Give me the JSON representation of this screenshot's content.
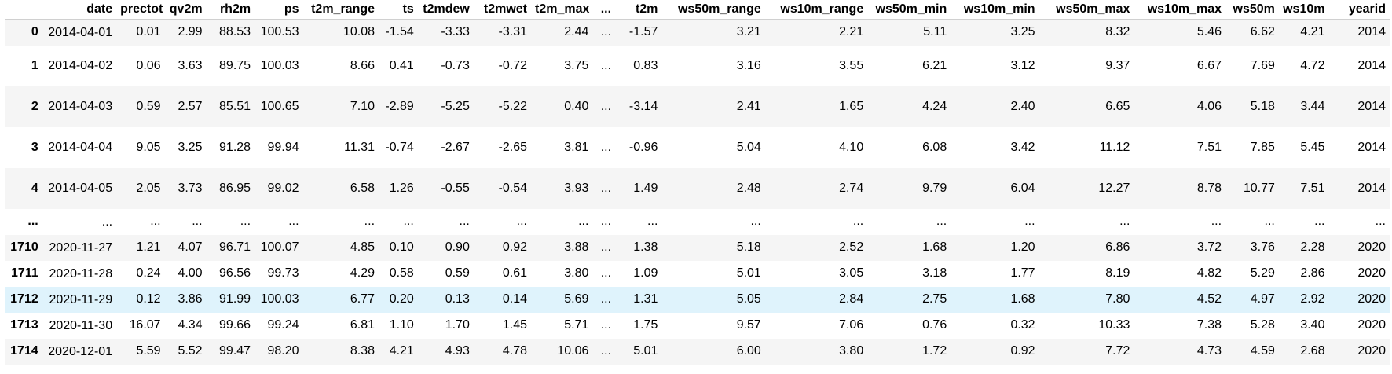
{
  "table": {
    "columns": [
      "",
      "date",
      "prectot",
      "qv2m",
      "rh2m",
      "ps",
      "t2m_range",
      "ts",
      "t2mdew",
      "t2mwet",
      "t2m_max",
      "...",
      "t2m",
      "ws50m_range",
      "ws10m_range",
      "ws50m_min",
      "ws10m_min",
      "ws50m_max",
      "ws10m_max",
      "ws50m",
      "ws10m",
      "yearid"
    ],
    "rows": [
      {
        "index": "0",
        "date": "2014-04-01",
        "values": [
          "0.01",
          "2.99",
          "88.53",
          "100.53",
          "10.08",
          "-1.54",
          "-3.33",
          "-3.31",
          "2.44",
          "...",
          "-1.57",
          "3.21",
          "2.21",
          "5.11",
          "3.25",
          "8.32",
          "5.46",
          "6.62",
          "4.21",
          "2014"
        ]
      },
      {
        "index": "1",
        "date": "2014-04-02",
        "values": [
          "0.06",
          "3.63",
          "89.75",
          "100.03",
          "8.66",
          "0.41",
          "-0.73",
          "-0.72",
          "3.75",
          "...",
          "0.83",
          "3.16",
          "3.55",
          "6.21",
          "3.12",
          "9.37",
          "6.67",
          "7.69",
          "4.72",
          "2014"
        ]
      },
      {
        "index": "2",
        "date": "2014-04-03",
        "values": [
          "0.59",
          "2.57",
          "85.51",
          "100.65",
          "7.10",
          "-2.89",
          "-5.25",
          "-5.22",
          "0.40",
          "...",
          "-3.14",
          "2.41",
          "1.65",
          "4.24",
          "2.40",
          "6.65",
          "4.06",
          "5.18",
          "3.44",
          "2014"
        ]
      },
      {
        "index": "3",
        "date": "2014-04-04",
        "values": [
          "9.05",
          "3.25",
          "91.28",
          "99.94",
          "11.31",
          "-0.74",
          "-2.67",
          "-2.65",
          "3.81",
          "...",
          "-0.96",
          "5.04",
          "4.10",
          "6.08",
          "3.42",
          "11.12",
          "7.51",
          "7.85",
          "5.45",
          "2014"
        ]
      },
      {
        "index": "4",
        "date": "2014-04-05",
        "values": [
          "2.05",
          "3.73",
          "86.95",
          "99.02",
          "6.58",
          "1.26",
          "-0.55",
          "-0.54",
          "3.93",
          "...",
          "1.49",
          "2.48",
          "2.74",
          "9.79",
          "6.04",
          "12.27",
          "8.78",
          "10.77",
          "7.51",
          "2014"
        ]
      },
      {
        "index": "...",
        "date": "...",
        "values": [
          "...",
          "...",
          "...",
          "...",
          "...",
          "...",
          "...",
          "...",
          "...",
          "...",
          "...",
          "...",
          "...",
          "...",
          "...",
          "...",
          "...",
          "...",
          "...",
          "..."
        ]
      },
      {
        "index": "1710",
        "date": "2020-11-27",
        "values": [
          "1.21",
          "4.07",
          "96.71",
          "100.07",
          "4.85",
          "0.10",
          "0.90",
          "0.92",
          "3.88",
          "...",
          "1.38",
          "5.18",
          "2.52",
          "1.68",
          "1.20",
          "6.86",
          "3.72",
          "3.76",
          "2.28",
          "2020"
        ]
      },
      {
        "index": "1711",
        "date": "2020-11-28",
        "values": [
          "0.24",
          "4.00",
          "96.56",
          "99.73",
          "4.29",
          "0.58",
          "0.59",
          "0.61",
          "3.80",
          "...",
          "1.09",
          "5.01",
          "3.05",
          "3.18",
          "1.77",
          "8.19",
          "4.82",
          "5.29",
          "2.86",
          "2020"
        ]
      },
      {
        "index": "1712",
        "date": "2020-11-29",
        "values": [
          "0.12",
          "3.86",
          "91.99",
          "100.03",
          "6.77",
          "0.20",
          "0.13",
          "0.14",
          "5.69",
          "...",
          "1.31",
          "5.05",
          "2.84",
          "2.75",
          "1.68",
          "7.80",
          "4.52",
          "4.97",
          "2.92",
          "2020"
        ]
      },
      {
        "index": "1713",
        "date": "2020-11-30",
        "values": [
          "16.07",
          "4.34",
          "99.66",
          "99.24",
          "6.81",
          "1.10",
          "1.70",
          "1.45",
          "5.71",
          "...",
          "1.75",
          "9.57",
          "7.06",
          "0.76",
          "0.32",
          "10.33",
          "7.38",
          "5.28",
          "3.40",
          "2020"
        ]
      },
      {
        "index": "1714",
        "date": "2020-12-01",
        "values": [
          "5.59",
          "5.52",
          "99.47",
          "98.20",
          "8.38",
          "4.21",
          "4.93",
          "4.78",
          "10.06",
          "...",
          "5.01",
          "6.00",
          "3.80",
          "1.72",
          "0.92",
          "7.72",
          "4.73",
          "4.59",
          "2.68",
          "2020"
        ]
      }
    ],
    "hovered_row_index": "1712",
    "colors": {
      "stripe": "#f5f5f5",
      "hover": "#dff3fc",
      "text": "#000000"
    }
  }
}
